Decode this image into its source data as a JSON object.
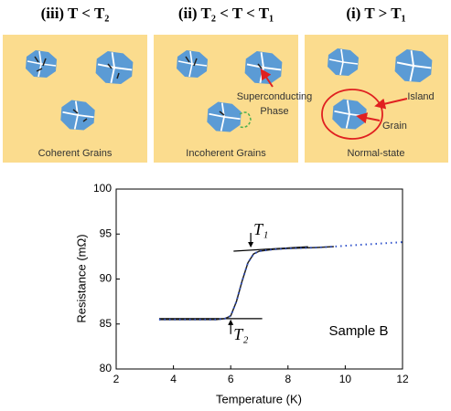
{
  "panels": [
    {
      "title": "(iii) T < T₂",
      "caption": "Coherent Grains"
    },
    {
      "title": "(ii) T₂ < T < T₁",
      "caption": "Incoherent Grains",
      "labels": [
        "Superconducting",
        "Phase"
      ]
    },
    {
      "title": "(i) T > T₁",
      "caption": "Normal-state",
      "labels": [
        "Island",
        "Grain"
      ]
    }
  ],
  "chart_data": {
    "type": "line",
    "xlabel": "Temperature (K)",
    "ylabel": "Resistance (mΩ)",
    "annotation": "Sample B",
    "xlim": [
      2,
      12
    ],
    "xticks": [
      2,
      4,
      6,
      8,
      10,
      12
    ],
    "ylim": [
      80,
      100
    ],
    "yticks": [
      80,
      85,
      90,
      95,
      100
    ],
    "series": [
      {
        "color": "#222222",
        "style": "solid",
        "x": [
          3.5,
          4,
          5,
          5.5,
          5.8,
          6,
          6.2,
          6.4,
          6.6,
          6.8,
          7,
          7.5,
          8,
          9,
          9.6
        ],
        "values": [
          85.5,
          85.5,
          85.5,
          85.5,
          85.6,
          85.9,
          87.5,
          89.8,
          91.8,
          92.8,
          93.1,
          93.3,
          93.4,
          93.5,
          93.6
        ]
      },
      {
        "color": "#3355cc",
        "style": "dotted",
        "x": [
          3.5,
          4,
          5,
          5.5,
          5.8,
          6,
          6.2,
          6.4,
          6.6,
          6.8,
          7,
          7.5,
          8,
          9,
          9.6,
          10,
          11,
          12
        ],
        "values": [
          85.5,
          85.5,
          85.5,
          85.5,
          85.6,
          85.9,
          87.5,
          89.8,
          91.8,
          92.8,
          93.1,
          93.3,
          93.4,
          93.5,
          93.6,
          93.7,
          93.9,
          94.1
        ]
      }
    ],
    "guides": [
      {
        "x": [
          3.5,
          7.1
        ],
        "y": [
          85.6,
          85.6
        ]
      },
      {
        "x": [
          6.1,
          8.7
        ],
        "y": [
          93.1,
          93.6
        ]
      }
    ],
    "markers": [
      {
        "label": "T₁",
        "x": 6.7,
        "y": 93.3
      },
      {
        "label": "T₂",
        "x": 6.0,
        "y": 85.7
      }
    ]
  }
}
